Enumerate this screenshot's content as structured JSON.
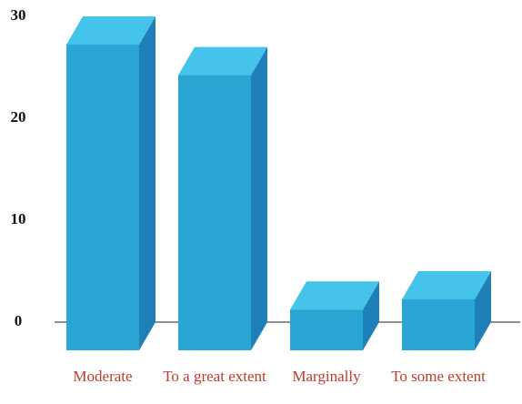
{
  "chart_data": {
    "type": "bar3d",
    "categories": [
      "Moderate",
      "To a great extent",
      "Marginally",
      "To some extent"
    ],
    "values": [
      30,
      27,
      4,
      5
    ],
    "color": "#2aa5d4",
    "ylim": [
      0,
      30
    ],
    "yticks": [
      0,
      10,
      20,
      30
    ],
    "grid": false
  }
}
